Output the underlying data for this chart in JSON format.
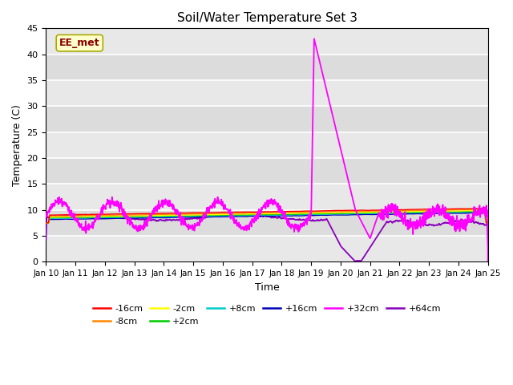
{
  "title": "Soil/Water Temperature Set 3",
  "xlabel": "Time",
  "ylabel": "Temperature (C)",
  "ylim": [
    0,
    45
  ],
  "yticks": [
    0,
    5,
    10,
    15,
    20,
    25,
    30,
    35,
    40,
    45
  ],
  "xlim": [
    0,
    15
  ],
  "bg_color": "#dcdcdc",
  "annotation_text": "EE_met",
  "annotation_box_color": "#ffffcc",
  "annotation_text_color": "#8b0000",
  "series": [
    {
      "label": "-16cm",
      "color": "#ff0000"
    },
    {
      "label": "-8cm",
      "color": "#ff8800"
    },
    {
      "label": "-2cm",
      "color": "#ffff00"
    },
    {
      "label": "+2cm",
      "color": "#00cc00"
    },
    {
      "label": "+8cm",
      "color": "#00cccc"
    },
    {
      "label": "+16cm",
      "color": "#0000bb"
    },
    {
      "label": "+32cm",
      "color": "#ff00ff"
    },
    {
      "label": "+64cm",
      "color": "#8800bb"
    }
  ]
}
